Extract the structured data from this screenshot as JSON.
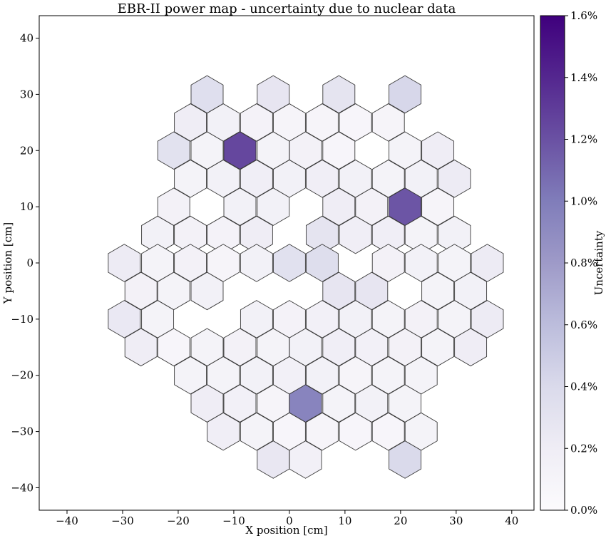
{
  "chart_data": {
    "type": "heatmap",
    "title": "EBR-II power map - uncertainty due to nuclear data",
    "xlabel": "X position [cm]",
    "ylabel": "Y position [cm]",
    "xlim": [
      -45,
      44
    ],
    "ylim": [
      -44,
      44
    ],
    "xticks": [
      -40,
      -30,
      -20,
      -10,
      0,
      10,
      20,
      30,
      40
    ],
    "yticks": [
      -40,
      -30,
      -20,
      -10,
      0,
      10,
      20,
      30,
      40
    ],
    "colorbar": {
      "label": "Uncertainty",
      "min": 0.0,
      "max": 1.6,
      "ticks": [
        0.0,
        0.2,
        0.4,
        0.6,
        0.8,
        1.0,
        1.2,
        1.4,
        1.6
      ],
      "tick_labels": [
        "0.0%",
        "0.2%",
        "0.4%",
        "0.6%",
        "0.8%",
        "1.0%",
        "1.2%",
        "1.4%",
        "1.6%"
      ],
      "colors": [
        "#fcfbfd",
        "#efedf5",
        "#dadaeb",
        "#bcbddc",
        "#9e9ac8",
        "#807dba",
        "#6a51a3",
        "#54278f",
        "#3f007d"
      ]
    },
    "hex_size": 3.33,
    "cells": [
      [
        -14.8,
        30.0,
        0.35
      ],
      [
        -2.9,
        30.0,
        0.28
      ],
      [
        8.9,
        30.0,
        0.3
      ],
      [
        20.8,
        30.0,
        0.42
      ],
      [
        -17.8,
        25.0,
        0.2
      ],
      [
        -11.9,
        25.0,
        0.15
      ],
      [
        -5.9,
        25.0,
        0.13
      ],
      [
        0.0,
        25.0,
        0.1
      ],
      [
        5.9,
        25.0,
        0.1
      ],
      [
        11.9,
        25.0,
        0.08
      ],
      [
        17.8,
        25.0,
        0.1
      ],
      [
        -20.8,
        20.0,
        0.32
      ],
      [
        -14.8,
        20.0,
        0.12
      ],
      [
        -8.9,
        20.0,
        1.25
      ],
      [
        -2.9,
        20.0,
        0.12
      ],
      [
        2.9,
        20.0,
        0.14
      ],
      [
        8.9,
        20.0,
        0.08
      ],
      [
        20.8,
        20.0,
        0.12
      ],
      [
        26.7,
        20.0,
        0.2
      ],
      [
        -17.8,
        15.0,
        0.12
      ],
      [
        -11.9,
        15.0,
        0.15
      ],
      [
        -5.9,
        15.0,
        0.18
      ],
      [
        0.0,
        15.0,
        0.15
      ],
      [
        5.9,
        15.0,
        0.18
      ],
      [
        11.9,
        15.0,
        0.15
      ],
      [
        17.8,
        15.0,
        0.12
      ],
      [
        23.7,
        15.0,
        0.15
      ],
      [
        29.7,
        15.0,
        0.22
      ],
      [
        -20.8,
        10.0,
        0.14
      ],
      [
        -8.9,
        10.0,
        0.15
      ],
      [
        -2.9,
        10.0,
        0.15
      ],
      [
        8.9,
        10.0,
        0.2
      ],
      [
        14.8,
        10.0,
        0.14
      ],
      [
        20.8,
        10.0,
        1.18
      ],
      [
        26.7,
        10.0,
        0.1
      ],
      [
        -23.7,
        5.0,
        0.15
      ],
      [
        -17.8,
        5.0,
        0.14
      ],
      [
        -11.9,
        5.0,
        0.13
      ],
      [
        -5.9,
        5.0,
        0.2
      ],
      [
        5.9,
        5.0,
        0.3
      ],
      [
        11.9,
        5.0,
        0.18
      ],
      [
        17.8,
        5.0,
        0.18
      ],
      [
        23.7,
        5.0,
        0.12
      ],
      [
        29.7,
        5.0,
        0.15
      ],
      [
        -29.7,
        0.0,
        0.22
      ],
      [
        -23.7,
        0.0,
        0.12
      ],
      [
        -17.8,
        0.0,
        0.14
      ],
      [
        -11.9,
        0.0,
        0.1
      ],
      [
        -5.9,
        0.0,
        0.15
      ],
      [
        0.0,
        0.0,
        0.33
      ],
      [
        5.9,
        0.0,
        0.36
      ],
      [
        17.8,
        0.0,
        0.14
      ],
      [
        23.7,
        0.0,
        0.15
      ],
      [
        29.7,
        0.0,
        0.12
      ],
      [
        35.6,
        0.0,
        0.22
      ],
      [
        -26.7,
        -5.0,
        0.14
      ],
      [
        -20.8,
        -5.0,
        0.12
      ],
      [
        -14.8,
        -5.0,
        0.15
      ],
      [
        8.9,
        -5.0,
        0.28
      ],
      [
        14.8,
        -5.0,
        0.28
      ],
      [
        26.7,
        -5.0,
        0.12
      ],
      [
        32.6,
        -5.0,
        0.15
      ],
      [
        -29.7,
        -10.0,
        0.25
      ],
      [
        -23.7,
        -10.0,
        0.12
      ],
      [
        -5.9,
        -10.0,
        0.15
      ],
      [
        0.0,
        -10.0,
        0.13
      ],
      [
        5.9,
        -10.0,
        0.16
      ],
      [
        11.9,
        -10.0,
        0.15
      ],
      [
        17.8,
        -10.0,
        0.12
      ],
      [
        23.7,
        -10.0,
        0.14
      ],
      [
        29.7,
        -10.0,
        0.12
      ],
      [
        35.6,
        -10.0,
        0.22
      ],
      [
        -26.7,
        -15.0,
        0.2
      ],
      [
        -20.8,
        -15.0,
        0.08
      ],
      [
        -14.8,
        -15.0,
        0.12
      ],
      [
        -8.9,
        -15.0,
        0.14
      ],
      [
        -2.9,
        -15.0,
        0.12
      ],
      [
        2.9,
        -15.0,
        0.15
      ],
      [
        8.9,
        -15.0,
        0.18
      ],
      [
        14.8,
        -15.0,
        0.16
      ],
      [
        20.8,
        -15.0,
        0.14
      ],
      [
        26.7,
        -15.0,
        0.12
      ],
      [
        32.6,
        -15.0,
        0.2
      ],
      [
        -17.8,
        -20.0,
        0.12
      ],
      [
        -11.9,
        -20.0,
        0.12
      ],
      [
        -5.9,
        -20.0,
        0.15
      ],
      [
        0.0,
        -20.0,
        0.16
      ],
      [
        5.9,
        -20.0,
        0.15
      ],
      [
        11.9,
        -20.0,
        0.1
      ],
      [
        17.8,
        -20.0,
        0.12
      ],
      [
        23.7,
        -20.0,
        0.12
      ],
      [
        -14.8,
        -25.0,
        0.2
      ],
      [
        -8.9,
        -25.0,
        0.16
      ],
      [
        -2.9,
        -25.0,
        0.1
      ],
      [
        2.9,
        -25.0,
        0.95
      ],
      [
        8.9,
        -25.0,
        0.12
      ],
      [
        14.8,
        -25.0,
        0.15
      ],
      [
        20.8,
        -25.0,
        0.12
      ],
      [
        -11.9,
        -30.0,
        0.18
      ],
      [
        -5.9,
        -30.0,
        0.12
      ],
      [
        0.0,
        -30.0,
        0.08
      ],
      [
        5.9,
        -30.0,
        0.1
      ],
      [
        11.9,
        -30.0,
        0.08
      ],
      [
        17.8,
        -30.0,
        0.08
      ],
      [
        23.7,
        -30.0,
        0.12
      ],
      [
        -2.9,
        -35.0,
        0.26
      ],
      [
        2.9,
        -35.0,
        0.16
      ],
      [
        20.8,
        -35.0,
        0.4
      ]
    ]
  }
}
